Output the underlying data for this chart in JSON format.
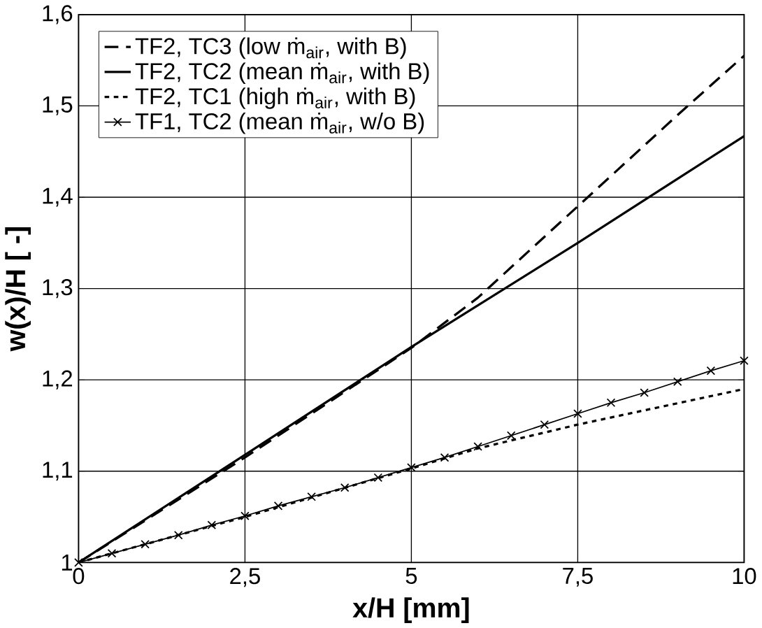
{
  "chart_data": {
    "type": "line",
    "xlabel": "x/H [mm]",
    "ylabel": "w(x)/H  [ -]",
    "xlim": [
      0,
      10
    ],
    "ylim": [
      1,
      1.6
    ],
    "xticks": [
      0,
      {
        "value": 2.5,
        "label": "2,5"
      },
      5,
      {
        "value": 7.5,
        "label": "7,5"
      },
      10
    ],
    "yticks": [
      1,
      {
        "value": 1.1,
        "label": "1,1"
      },
      {
        "value": 1.2,
        "label": "1,2"
      },
      {
        "value": 1.3,
        "label": "1,3"
      },
      {
        "value": 1.4,
        "label": "1,4"
      },
      {
        "value": 1.5,
        "label": "1,5"
      },
      {
        "value": 1.6,
        "label": "1,6"
      }
    ],
    "grid": true,
    "legend": "top left",
    "series": [
      {
        "name": "TF2, TC3 (low ṁ$_{air}$, with B)",
        "color": "#000000",
        "line_style": "dashed",
        "marker": "none",
        "x": [
          0,
          2.5,
          5,
          6,
          7.5,
          9,
          10
        ],
        "values": [
          1,
          1.115,
          1.235,
          1.29,
          1.39,
          1.49,
          1.555
        ]
      },
      {
        "name": "TF2, TC2 (mean ṁ$_{air}$, with B)",
        "color": "#000000",
        "line_style": "solid",
        "marker": "none",
        "x": [
          0,
          2.5,
          5,
          7.5,
          10
        ],
        "values": [
          1,
          1.118,
          1.236,
          1.35,
          1.467
        ]
      },
      {
        "name": "TF2, TC1 (high ṁ$_{air}$, with B)",
        "color": "#000000",
        "line_style": "dotted",
        "marker": "none",
        "x": [
          0,
          2.5,
          5,
          6,
          7.5,
          10
        ],
        "values": [
          1,
          1.05,
          1.103,
          1.125,
          1.151,
          1.19
        ]
      },
      {
        "name": "TF1, TC2 (mean ṁ$_{air}$, w/o B)",
        "color": "#000000",
        "line_style": "solid",
        "marker": "cross",
        "x": [
          0,
          0.5,
          1,
          1.5,
          2,
          2.5,
          3,
          3.5,
          4,
          4.5,
          5,
          5.5,
          6,
          6.5,
          7,
          7.5,
          8,
          8.5,
          9,
          9.5,
          10
        ],
        "values": [
          1,
          1.01,
          1.02,
          1.03,
          1.041,
          1.051,
          1.062,
          1.072,
          1.082,
          1.093,
          1.104,
          1.115,
          1.127,
          1.139,
          1.151,
          1.163,
          1.175,
          1.186,
          1.198,
          1.21,
          1.221
        ]
      }
    ]
  }
}
